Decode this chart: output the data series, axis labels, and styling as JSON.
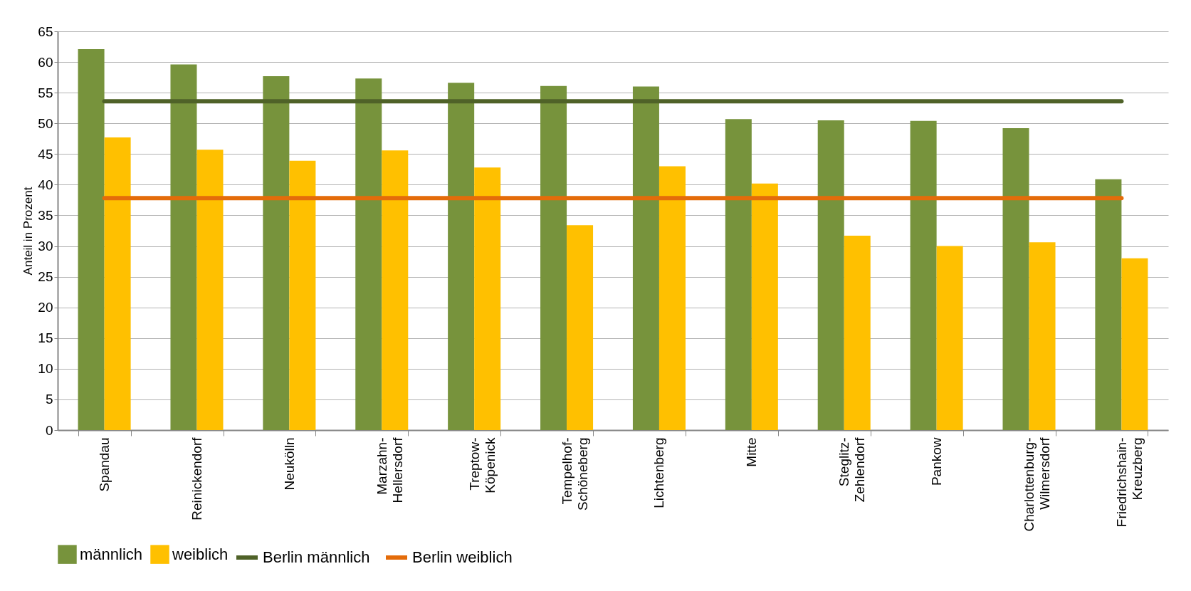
{
  "chart_data": {
    "type": "bar",
    "ylabel": "Anteil in Prozent",
    "categories": [
      "Spandau",
      "Reinickendorf",
      "Neukölln",
      "Marzahn-Hellersdorf",
      "Treptow-Köpenick",
      "Tempelhof-Schöneberg",
      "Lichtenberg",
      "Mitte",
      "Steglitz-Zehlendorf",
      "Pankow",
      "Charlottenburg-Wilmersdorf",
      "Friedrichshain-Kreuzberg"
    ],
    "series": [
      {
        "name": "männlich",
        "color": "#77933c",
        "values": [
          62.1,
          59.6,
          57.7,
          57.3,
          56.6,
          56.1,
          56.0,
          50.7,
          50.5,
          50.4,
          49.2,
          40.9
        ]
      },
      {
        "name": "weiblich",
        "color": "#ffc000",
        "values": [
          47.7,
          45.7,
          43.9,
          45.6,
          42.8,
          33.4,
          43.0,
          40.2,
          31.7,
          30.0,
          30.6,
          28.0
        ]
      },
      {
        "name": "Berlin männlich",
        "type": "line",
        "color": "#4f6228",
        "values": [
          53.6,
          53.6,
          53.6,
          53.6,
          53.6,
          53.6,
          53.6,
          53.6,
          53.6,
          53.6,
          53.6,
          53.6
        ]
      },
      {
        "name": "Berlin weiblich",
        "type": "line",
        "color": "#e46c0a",
        "values": [
          37.8,
          37.8,
          37.8,
          37.8,
          37.8,
          37.8,
          37.8,
          37.8,
          37.8,
          37.8,
          37.8,
          37.8
        ]
      }
    ],
    "ylim": [
      0,
      65
    ],
    "yticks": [
      0,
      5,
      10,
      15,
      20,
      25,
      30,
      35,
      40,
      45,
      50,
      55,
      60,
      65
    ],
    "grid": "y",
    "legend": "bottom",
    "marker": "none"
  }
}
